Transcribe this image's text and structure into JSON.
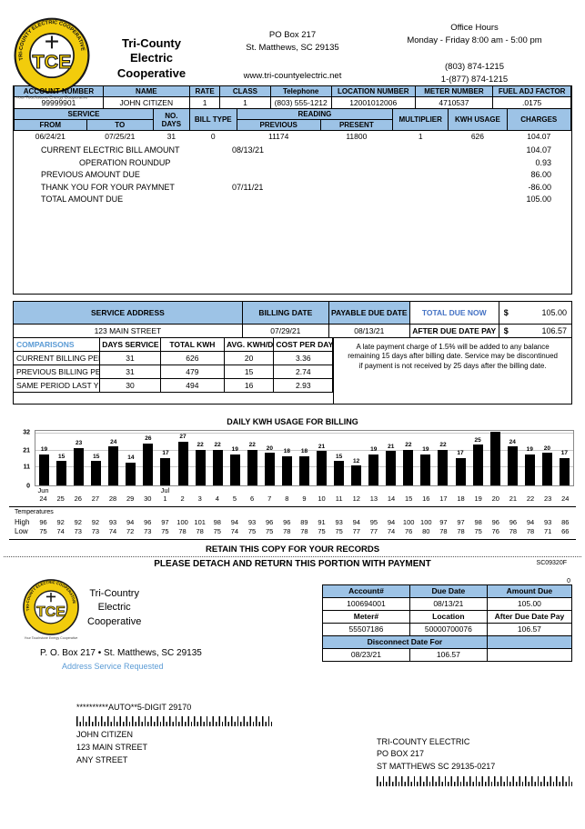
{
  "header": {
    "company_lines": "Tri-County\nElectric\nCooperative",
    "address_line1": "PO Box 217",
    "address_line2": "St. Matthews, SC 29135",
    "website": "www.tri-countyelectric.net",
    "office_hours_title": "Office Hours",
    "office_hours": "Monday - Friday 8:00 am - 5:00 pm",
    "phone1": "(803) 874-1215",
    "phone2": "1-(877) 874-1215",
    "logo": {
      "ring_text": "TRI-COUNTY ELECTRIC COOPERATIVE",
      "center_text": "TCE",
      "tagline": "Your Touchstone Energy Cooperative"
    }
  },
  "account_table": {
    "headers": [
      "ACCOUNT NUMBER",
      "NAME",
      "RATE",
      "CLASS",
      "Telephone",
      "LOCATION NUMBER",
      "METER NUMBER",
      "FUEL ADJ FACTOR"
    ],
    "values": [
      "99999901",
      "JOHN CITIZEN",
      "1",
      "1",
      "(803) 555-1212",
      "12001012006",
      "4710537",
      ".0175"
    ]
  },
  "service_table": {
    "group_service": "SERVICE",
    "group_reading": "READING",
    "headers": [
      "FROM",
      "TO",
      "NO. DAYS",
      "BILL TYPE",
      "PREVIOUS",
      "PRESENT",
      "MULTIPLIER",
      "KWH USAGE",
      "CHARGES"
    ],
    "values": [
      "06/24/21",
      "07/25/21",
      "31",
      "0",
      "11174",
      "11800",
      "1",
      "626",
      "104.07"
    ]
  },
  "bill_lines": [
    {
      "label": "CURRENT ELECTRIC BILL AMOUNT",
      "date": "08/13/21",
      "amount": "104.07"
    },
    {
      "label": "OPERATION ROUNDUP",
      "date": "",
      "amount": "0.93"
    },
    {
      "label": "PREVIOUS AMOUNT DUE",
      "date": "",
      "amount": "86.00"
    },
    {
      "label": "THANK YOU FOR YOUR PAYMNET",
      "date": "07/11/21",
      "amount": "-86.00"
    },
    {
      "label": "TOTAL AMOUNT DUE",
      "date": "",
      "amount": "105.00"
    }
  ],
  "summary": {
    "service_address_label": "SERVICE ADDRESS",
    "service_address": "123 MAIN STREET",
    "billing_date_label": "BILLING DATE",
    "billing_date": "07/29/21",
    "payable_due_label": "PAYABLE DUE DATE",
    "payable_due_date": "08/13/21",
    "total_due_label": "TOTAL DUE NOW",
    "currency": "$",
    "total_due": "105.00",
    "after_due_label": "AFTER DUE DATE PAY",
    "after_due": "106.57",
    "late_note": "A late payment charge of 1.5% will be added to any balance remaining 15 days after billing date. Service may be discontinued if payment is not received by 25 days after the billing date."
  },
  "comparisons": {
    "headers": [
      "COMPARISONS",
      "DAYS SERVICE",
      "TOTAL KWH",
      "AVG. KWH/DAY",
      "COST PER DAY"
    ],
    "rows": [
      [
        "CURRENT BILLING PERIOD",
        "31",
        "626",
        "20",
        "3.36"
      ],
      [
        "PREVIOUS BILLING PERIOD",
        "31",
        "479",
        "15",
        "2.74"
      ],
      [
        "SAME PERIOD LAST YEAR",
        "30",
        "494",
        "16",
        "2.93"
      ]
    ]
  },
  "chart_data": {
    "type": "bar",
    "title": "DAILY KWH USAGE FOR BILLING",
    "categories": [
      "24",
      "25",
      "26",
      "27",
      "28",
      "29",
      "30",
      "1",
      "2",
      "3",
      "4",
      "5",
      "6",
      "7",
      "8",
      "9",
      "10",
      "11",
      "12",
      "13",
      "14",
      "15",
      "16",
      "17",
      "18",
      "19",
      "20",
      "21",
      "22",
      "23",
      "24"
    ],
    "month_markers": [
      {
        "index": 0,
        "label": "Jun"
      },
      {
        "index": 7,
        "label": "Jul"
      }
    ],
    "values": [
      19,
      15,
      23,
      15,
      24,
      14,
      26,
      17,
      27,
      22,
      22,
      19,
      22,
      20,
      18,
      18,
      21,
      15,
      12,
      19,
      21,
      22,
      19,
      22,
      17,
      25,
      33,
      24,
      19,
      20,
      17
    ],
    "bar_labels": [
      "19",
      "15",
      "23",
      "15",
      "24",
      "14",
      "26",
      "17",
      "27",
      "22",
      "22",
      "19",
      "22",
      "20",
      "18",
      "18",
      "21",
      "15",
      "12",
      "19",
      "21",
      "22",
      "19",
      "22",
      "17",
      "25",
      "",
      "24",
      "19",
      "20",
      "17"
    ],
    "yticks": [
      0,
      11,
      21,
      32
    ],
    "ylim": [
      0,
      34
    ],
    "xlabel": "",
    "ylabel": "",
    "grid": true,
    "legend": "none",
    "bar_color": "#000000"
  },
  "temperatures": {
    "title": "Temperatures",
    "high_label": "High",
    "low_label": "Low",
    "high": [
      96,
      92,
      92,
      92,
      93,
      94,
      96,
      97,
      100,
      101,
      98,
      94,
      93,
      96,
      96,
      89,
      91,
      93,
      94,
      95,
      94,
      100,
      100,
      97,
      97,
      98,
      96,
      96,
      94,
      93,
      86
    ],
    "low": [
      75,
      74,
      73,
      73,
      74,
      72,
      73,
      75,
      78,
      78,
      75,
      74,
      75,
      75,
      78,
      78,
      75,
      75,
      77,
      77,
      74,
      76,
      80,
      78,
      78,
      75,
      76,
      78,
      78,
      71,
      66
    ]
  },
  "detach": {
    "retain_text": "RETAIN THIS COPY FOR YOUR RECORDS",
    "detach_text": "PLEASE DETACH AND RETURN THIS PORTION WITH PAYMENT",
    "form_code": "SC09320F"
  },
  "stub": {
    "company_lines": "Tri-Country\nElectric\nCooperative",
    "po_line": "P. O. Box 217 • St. Matthews, SC 29135",
    "address_service": "Address Service Requested",
    "zero": "0",
    "table": {
      "row1_headers": [
        "Account#",
        "Due Date",
        "Amount Due"
      ],
      "row1_values": [
        "100694001",
        "08/13/21",
        "105.00"
      ],
      "row2_headers": [
        "Meter#",
        "Location",
        "After Due Date Pay"
      ],
      "row2_values": [
        "55507186",
        "50000700076",
        "106.57"
      ],
      "disconnect_label": "Disconnect Date For",
      "disconnect_date": "08/23/21",
      "disconnect_amount": "106.57"
    }
  },
  "mail": {
    "auto_line": "**********AUTO**5-DIGIT 29170",
    "recipient": [
      "JOHN CITIZEN",
      "123 MAIN STREET",
      "ANY STREET"
    ],
    "return_address": [
      "TRI-COUNTY ELECTRIC",
      "PO BOX 217",
      "ST MATTHEWS SC 29135-0217"
    ]
  },
  "colors": {
    "header_blue": "#9DC3E6",
    "accent_blue": "#4472C4",
    "light_blue_text": "#5B9BD5",
    "logo_yellow": "#F2CC0C",
    "bar_black": "#000000"
  }
}
